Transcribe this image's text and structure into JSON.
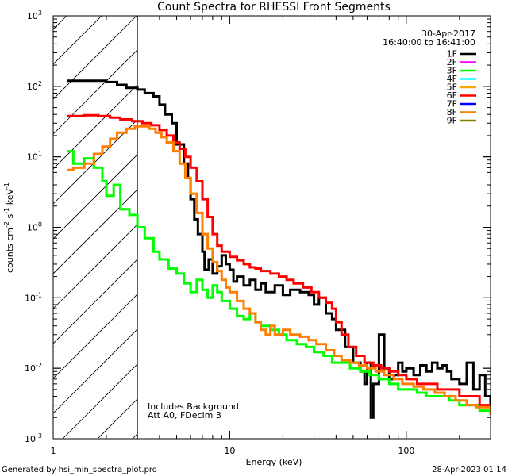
{
  "chart_data": {
    "type": "line",
    "title": "Count Spectra for RHESSI Front Segments",
    "xlabel": "Energy (keV)",
    "ylabel_parts": {
      "a": "counts cm",
      "b": "-2",
      "c": " s",
      "d": "-1",
      "e": " keV",
      "f": "-1"
    },
    "xscale": "log",
    "yscale": "log",
    "xlim": [
      1,
      300
    ],
    "ylim": [
      0.001,
      1000
    ],
    "xticks": [
      {
        "v": 1,
        "t": "1"
      },
      {
        "v": 10,
        "t": "10"
      },
      {
        "v": 100,
        "t": "100"
      }
    ],
    "yticks": [
      {
        "v": 0.001,
        "m": "10",
        "e": "-3"
      },
      {
        "v": 0.01,
        "m": "10",
        "e": "-2"
      },
      {
        "v": 0.1,
        "m": "10",
        "e": "-1"
      },
      {
        "v": 1,
        "m": "10",
        "e": "0"
      },
      {
        "v": 10,
        "m": "10",
        "e": "1"
      },
      {
        "v": 100,
        "m": "10",
        "e": "2"
      },
      {
        "v": 1000,
        "m": "10",
        "e": "3"
      }
    ],
    "hatched_region_xmax_keV": 3,
    "date": "30-Apr-2017",
    "time_range": "16:40:00 to 16:41:00",
    "annotations": [
      "Includes Background",
      "Att A0, FDecim 3"
    ],
    "legend": [
      {
        "name": "1F",
        "color": "#000000"
      },
      {
        "name": "2F",
        "color": "#ff00ff"
      },
      {
        "name": "3F",
        "color": "#00ff00"
      },
      {
        "name": "4F",
        "color": "#00ffff"
      },
      {
        "name": "5F",
        "color": "#ffa500"
      },
      {
        "name": "6F",
        "color": "#ff0000"
      },
      {
        "name": "7F",
        "color": "#0000ff"
      },
      {
        "name": "8F",
        "color": "#ff7f00"
      },
      {
        "name": "9F",
        "color": "#808000"
      }
    ],
    "series": [
      {
        "name": "1F",
        "color": "#000000",
        "points": [
          [
            1.2,
            120
          ],
          [
            1.5,
            120
          ],
          [
            2.0,
            115
          ],
          [
            2.3,
            105
          ],
          [
            2.6,
            95
          ],
          [
            3.0,
            90
          ],
          [
            3.3,
            80
          ],
          [
            3.7,
            72
          ],
          [
            4.0,
            55
          ],
          [
            4.3,
            40
          ],
          [
            4.7,
            30
          ],
          [
            5.0,
            15
          ],
          [
            5.5,
            8
          ],
          [
            5.8,
            5
          ],
          [
            6.0,
            2.5
          ],
          [
            6.3,
            1.3
          ],
          [
            6.6,
            0.8
          ],
          [
            7.0,
            0.45
          ],
          [
            7.2,
            0.25
          ],
          [
            7.6,
            0.35
          ],
          [
            8.0,
            0.22
          ],
          [
            8.5,
            0.28
          ],
          [
            9.0,
            0.4
          ],
          [
            9.5,
            0.3
          ],
          [
            10,
            0.25
          ],
          [
            10.5,
            0.17
          ],
          [
            11,
            0.2
          ],
          [
            12,
            0.15
          ],
          [
            13,
            0.18
          ],
          [
            14,
            0.13
          ],
          [
            15,
            0.16
          ],
          [
            16,
            0.12
          ],
          [
            18,
            0.15
          ],
          [
            20,
            0.11
          ],
          [
            22,
            0.13
          ],
          [
            25,
            0.12
          ],
          [
            28,
            0.11
          ],
          [
            30,
            0.08
          ],
          [
            32,
            0.1
          ],
          [
            35,
            0.06
          ],
          [
            38,
            0.05
          ],
          [
            40,
            0.035
          ],
          [
            45,
            0.02
          ],
          [
            50,
            0.012
          ],
          [
            55,
            0.009
          ],
          [
            58,
            0.006
          ],
          [
            60,
            0.012
          ],
          [
            63,
            0.002
          ],
          [
            65,
            0.006
          ],
          [
            70,
            0.03
          ],
          [
            75,
            0.01
          ],
          [
            80,
            0.007
          ],
          [
            85,
            0.008
          ],
          [
            90,
            0.012
          ],
          [
            95,
            0.009
          ],
          [
            100,
            0.01
          ],
          [
            110,
            0.008
          ],
          [
            120,
            0.011
          ],
          [
            130,
            0.009
          ],
          [
            140,
            0.012
          ],
          [
            150,
            0.01
          ],
          [
            160,
            0.011
          ],
          [
            170,
            0.009
          ],
          [
            180,
            0.007
          ],
          [
            200,
            0.006
          ],
          [
            220,
            0.012
          ],
          [
            240,
            0.005
          ],
          [
            260,
            0.008
          ],
          [
            280,
            0.004
          ],
          [
            300,
            0.003
          ]
        ]
      },
      {
        "name": "3F",
        "color": "#00ff00",
        "points": [
          [
            1.2,
            12
          ],
          [
            1.3,
            8
          ],
          [
            1.5,
            9.5
          ],
          [
            1.7,
            7
          ],
          [
            1.9,
            4.5
          ],
          [
            2.0,
            2.8
          ],
          [
            2.2,
            4
          ],
          [
            2.4,
            1.8
          ],
          [
            2.7,
            1.5
          ],
          [
            3.0,
            1.0
          ],
          [
            3.3,
            0.7
          ],
          [
            3.7,
            0.45
          ],
          [
            4.0,
            0.35
          ],
          [
            4.5,
            0.26
          ],
          [
            5.0,
            0.22
          ],
          [
            5.5,
            0.16
          ],
          [
            6.0,
            0.12
          ],
          [
            6.5,
            0.18
          ],
          [
            7.0,
            0.13
          ],
          [
            7.5,
            0.1
          ],
          [
            8.0,
            0.15
          ],
          [
            8.5,
            0.12
          ],
          [
            9.0,
            0.09
          ],
          [
            10,
            0.07
          ],
          [
            11,
            0.055
          ],
          [
            12,
            0.05
          ],
          [
            13,
            0.06
          ],
          [
            14,
            0.045
          ],
          [
            15,
            0.04
          ],
          [
            17,
            0.035
          ],
          [
            19,
            0.03
          ],
          [
            21,
            0.025
          ],
          [
            24,
            0.022
          ],
          [
            27,
            0.02
          ],
          [
            30,
            0.017
          ],
          [
            34,
            0.015
          ],
          [
            38,
            0.012
          ],
          [
            42,
            0.012
          ],
          [
            48,
            0.01
          ],
          [
            55,
            0.009
          ],
          [
            62,
            0.008
          ],
          [
            70,
            0.007
          ],
          [
            80,
            0.006
          ],
          [
            90,
            0.005
          ],
          [
            100,
            0.005
          ],
          [
            115,
            0.0045
          ],
          [
            130,
            0.004
          ],
          [
            150,
            0.004
          ],
          [
            175,
            0.0035
          ],
          [
            200,
            0.003
          ],
          [
            230,
            0.003
          ],
          [
            260,
            0.0025
          ],
          [
            300,
            0.0022
          ]
        ]
      },
      {
        "name": "6F",
        "color": "#ff0000",
        "points": [
          [
            1.2,
            38
          ],
          [
            1.5,
            39
          ],
          [
            1.8,
            38
          ],
          [
            2.1,
            36
          ],
          [
            2.4,
            34
          ],
          [
            2.8,
            32
          ],
          [
            3.2,
            30
          ],
          [
            3.6,
            28
          ],
          [
            4.0,
            24
          ],
          [
            4.4,
            20
          ],
          [
            4.8,
            16
          ],
          [
            5.2,
            13
          ],
          [
            5.6,
            10
          ],
          [
            6.0,
            7
          ],
          [
            6.5,
            4.5
          ],
          [
            7.0,
            2.5
          ],
          [
            7.5,
            1.4
          ],
          [
            8.0,
            0.8
          ],
          [
            8.5,
            0.55
          ],
          [
            9.0,
            0.45
          ],
          [
            10,
            0.38
          ],
          [
            11,
            0.34
          ],
          [
            12,
            0.3
          ],
          [
            13,
            0.27
          ],
          [
            14,
            0.26
          ],
          [
            15,
            0.24
          ],
          [
            17,
            0.22
          ],
          [
            19,
            0.2
          ],
          [
            21,
            0.18
          ],
          [
            23,
            0.16
          ],
          [
            26,
            0.14
          ],
          [
            29,
            0.12
          ],
          [
            32,
            0.1
          ],
          [
            35,
            0.085
          ],
          [
            38,
            0.07
          ],
          [
            40,
            0.045
          ],
          [
            43,
            0.03
          ],
          [
            47,
            0.02
          ],
          [
            52,
            0.015
          ],
          [
            58,
            0.012
          ],
          [
            65,
            0.011
          ],
          [
            72,
            0.01
          ],
          [
            80,
            0.009
          ],
          [
            90,
            0.008
          ],
          [
            100,
            0.007
          ],
          [
            115,
            0.006
          ],
          [
            130,
            0.006
          ],
          [
            150,
            0.005
          ],
          [
            170,
            0.005
          ],
          [
            200,
            0.004
          ],
          [
            230,
            0.004
          ],
          [
            260,
            0.003
          ],
          [
            300,
            0.0025
          ]
        ]
      },
      {
        "name": "8F",
        "color": "#ff7f00",
        "points": [
          [
            1.2,
            6.5
          ],
          [
            1.3,
            7
          ],
          [
            1.5,
            8
          ],
          [
            1.7,
            11
          ],
          [
            1.9,
            14
          ],
          [
            2.1,
            18
          ],
          [
            2.3,
            22
          ],
          [
            2.6,
            25
          ],
          [
            2.9,
            27
          ],
          [
            3.2,
            27
          ],
          [
            3.5,
            25
          ],
          [
            3.8,
            22
          ],
          [
            4.1,
            19
          ],
          [
            4.4,
            16
          ],
          [
            4.8,
            12
          ],
          [
            5.2,
            8
          ],
          [
            5.6,
            5
          ],
          [
            6.0,
            3
          ],
          [
            6.5,
            1.6
          ],
          [
            7.0,
            0.8
          ],
          [
            7.5,
            0.5
          ],
          [
            8.0,
            0.32
          ],
          [
            8.5,
            0.24
          ],
          [
            9.0,
            0.18
          ],
          [
            9.5,
            0.14
          ],
          [
            10,
            0.12
          ],
          [
            11,
            0.09
          ],
          [
            12,
            0.07
          ],
          [
            13,
            0.06
          ],
          [
            14,
            0.045
          ],
          [
            15,
            0.035
          ],
          [
            16,
            0.03
          ],
          [
            17,
            0.04
          ],
          [
            18,
            0.03
          ],
          [
            20,
            0.035
          ],
          [
            22,
            0.03
          ],
          [
            25,
            0.028
          ],
          [
            28,
            0.025
          ],
          [
            31,
            0.022
          ],
          [
            35,
            0.018
          ],
          [
            39,
            0.015
          ],
          [
            43,
            0.013
          ],
          [
            48,
            0.012
          ],
          [
            54,
            0.011
          ],
          [
            60,
            0.01
          ],
          [
            67,
            0.009
          ],
          [
            75,
            0.008
          ],
          [
            85,
            0.007
          ],
          [
            95,
            0.006
          ],
          [
            110,
            0.0055
          ],
          [
            125,
            0.005
          ],
          [
            145,
            0.0045
          ],
          [
            165,
            0.004
          ],
          [
            190,
            0.0035
          ],
          [
            220,
            0.003
          ],
          [
            250,
            0.0028
          ],
          [
            300,
            0.0022
          ]
        ]
      }
    ]
  },
  "footer": {
    "generated_by": "Generated by hsi_min_spectra_plot.pro",
    "timestamp": "28-Apr-2023 01:14"
  }
}
